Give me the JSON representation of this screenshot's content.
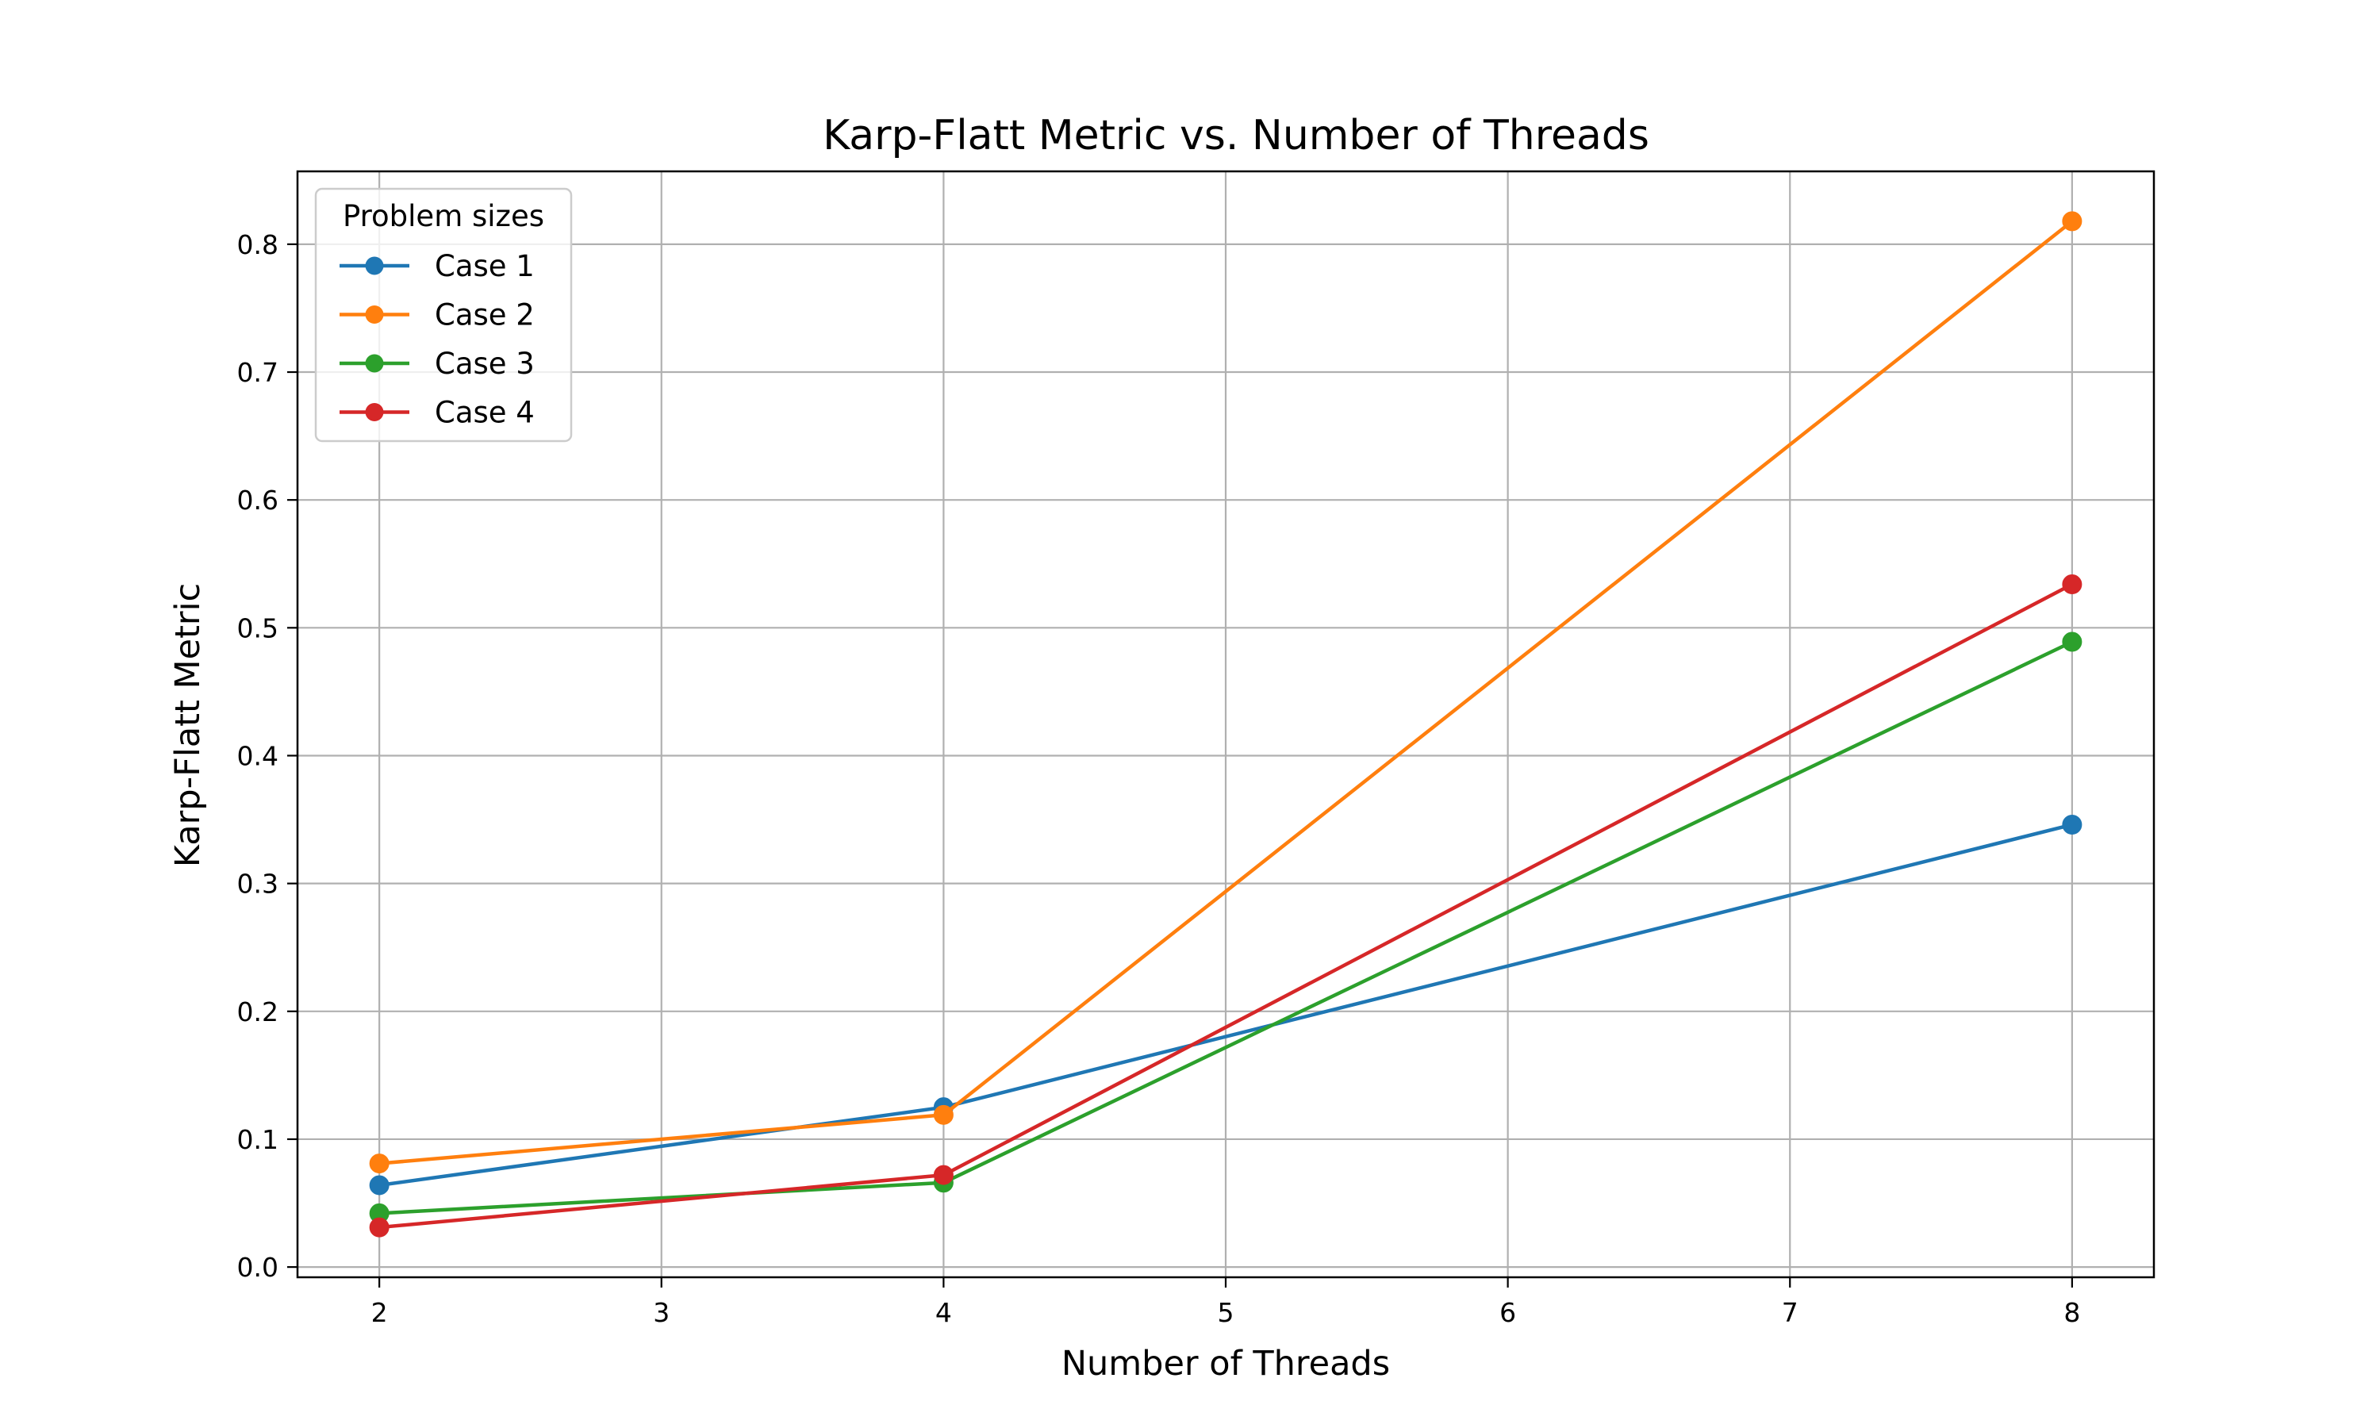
{
  "chart_data": {
    "type": "line",
    "title": "Karp-Flatt Metric vs. Number of Threads",
    "xlabel": "Number of Threads",
    "ylabel": "Karp-Flatt Metric",
    "xlim": [
      1.71,
      8.29
    ],
    "ylim": [
      -0.008,
      0.857
    ],
    "xticks": [
      2,
      3,
      4,
      5,
      6,
      7,
      8
    ],
    "xtick_labels": [
      "2",
      "3",
      "4",
      "5",
      "6",
      "7",
      "8"
    ],
    "yticks": [
      0.0,
      0.1,
      0.2,
      0.3,
      0.4,
      0.5,
      0.6,
      0.7,
      0.8
    ],
    "ytick_labels": [
      "0.0",
      "0.1",
      "0.2",
      "0.3",
      "0.4",
      "0.5",
      "0.6",
      "0.7",
      "0.8"
    ],
    "grid": true,
    "legend": {
      "title": "Problem sizes",
      "placement": "top-left"
    },
    "x": [
      2,
      4,
      8
    ],
    "series": [
      {
        "name": "Case 1",
        "color": "#1f77b4",
        "values": [
          0.064,
          0.125,
          0.346
        ]
      },
      {
        "name": "Case 2",
        "color": "#ff7f0e",
        "values": [
          0.081,
          0.119,
          0.818
        ]
      },
      {
        "name": "Case 3",
        "color": "#2ca02c",
        "values": [
          0.042,
          0.066,
          0.489
        ]
      },
      {
        "name": "Case 4",
        "color": "#d62728",
        "values": [
          0.031,
          0.072,
          0.534
        ]
      }
    ]
  }
}
